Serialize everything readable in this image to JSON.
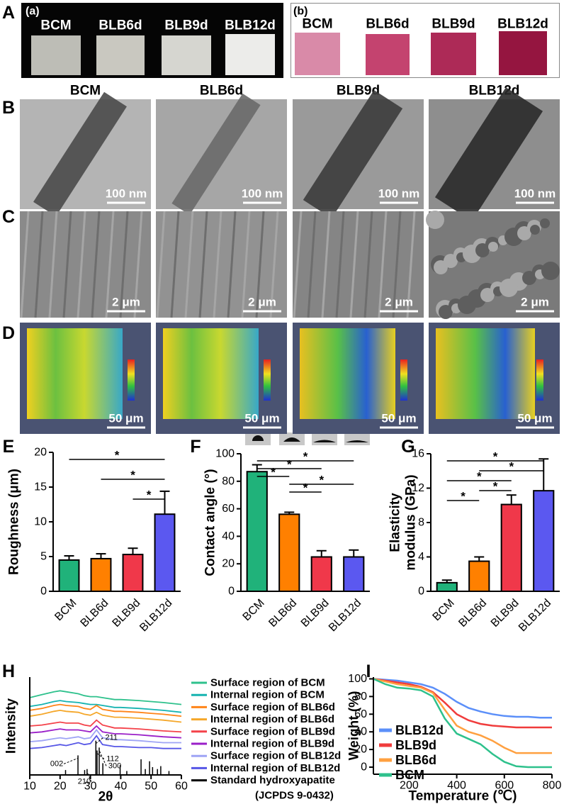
{
  "panel_labels": [
    "A",
    "B",
    "C",
    "D",
    "E",
    "F",
    "G",
    "H",
    "I"
  ],
  "photo_labels": [
    "(a)",
    "(b)"
  ],
  "columns": [
    "BCM",
    "BLB6d",
    "BLB9d",
    "BLB12d"
  ],
  "scale_bars": {
    "B": "100 nm",
    "C": "2 μm",
    "D": "50 μm"
  },
  "chart_data": [
    {
      "type": "bar",
      "ylabel": "Roughness (μm)",
      "categories": [
        "BCM",
        "BLB6d",
        "BLB9d",
        "BLB12d"
      ],
      "values": [
        4.5,
        4.7,
        5.3,
        11.1
      ],
      "errors": [
        0.6,
        0.7,
        0.9,
        3.3
      ],
      "colors": [
        "#20b27a",
        "#ff8000",
        "#f0384a",
        "#5b58f0"
      ],
      "ylim": [
        0,
        20
      ],
      "yticks": [
        0,
        5,
        10,
        15,
        20
      ],
      "significance": [
        {
          "from": 0,
          "to": 3,
          "label": "*"
        },
        {
          "from": 1,
          "to": 3,
          "label": "*"
        },
        {
          "from": 2,
          "to": 3,
          "label": "*"
        }
      ]
    },
    {
      "type": "bar",
      "ylabel": "Contact angle (°)",
      "categories": [
        "BCM",
        "BLB6d",
        "BLB9d",
        "BLB12d"
      ],
      "values": [
        87,
        56,
        25,
        25
      ],
      "errors": [
        5,
        1.5,
        4.5,
        5
      ],
      "colors": [
        "#20b27a",
        "#ff8000",
        "#f0384a",
        "#5b58f0"
      ],
      "ylim": [
        0,
        100
      ],
      "yticks": [
        0,
        20,
        40,
        60,
        80,
        100
      ],
      "significance": [
        {
          "from": 0,
          "to": 3,
          "label": "*"
        },
        {
          "from": 0,
          "to": 2,
          "label": "*"
        },
        {
          "from": 0,
          "to": 1,
          "label": "*"
        },
        {
          "from": 1,
          "to": 3,
          "label": "*"
        },
        {
          "from": 1,
          "to": 2,
          "label": "*"
        }
      ]
    },
    {
      "type": "bar",
      "ylabel": [
        "Elasticity",
        "modulus (GPa)"
      ],
      "categories": [
        "BCM",
        "BLB6d",
        "BLB9d",
        "BLB12d"
      ],
      "values": [
        1.0,
        3.5,
        10.1,
        11.7
      ],
      "errors": [
        0.3,
        0.5,
        1.1,
        3.7
      ],
      "colors": [
        "#20b27a",
        "#ff8000",
        "#f0384a",
        "#5b58f0"
      ],
      "ylim": [
        0,
        16
      ],
      "yticks": [
        0,
        4,
        8,
        12,
        16
      ],
      "significance": [
        {
          "from": 0,
          "to": 3,
          "label": "*"
        },
        {
          "from": 1,
          "to": 3,
          "label": "*"
        },
        {
          "from": 0,
          "to": 2,
          "label": "*"
        },
        {
          "from": 1,
          "to": 2,
          "label": "*"
        },
        {
          "from": 0,
          "to": 1,
          "label": "*"
        }
      ]
    },
    {
      "type": "xrd",
      "xlabel": "2θ",
      "ylabel": "Intensity",
      "xlim": [
        10,
        60
      ],
      "xticks": [
        10,
        20,
        30,
        40,
        50,
        60
      ],
      "ylim": [
        0,
        100
      ],
      "x": [
        10,
        14,
        18,
        20,
        22,
        26,
        28,
        30,
        32,
        34,
        38,
        40,
        46,
        50,
        54,
        60
      ],
      "series": [
        {
          "name": "Surface region of BCM",
          "color": "#2ec18c",
          "values": [
            79,
            82,
            85,
            86,
            85,
            83,
            81,
            80,
            80,
            79,
            77,
            77,
            76,
            75,
            74,
            72
          ]
        },
        {
          "name": "Internal region of BCM",
          "color": "#16b3b0",
          "values": [
            70,
            72,
            75,
            76,
            75,
            74,
            73,
            72,
            72,
            71,
            69,
            69,
            68,
            67,
            66,
            64
          ]
        },
        {
          "name": "Surface region of BLB6d",
          "color": "#ff8418",
          "values": [
            66,
            68,
            71,
            72,
            71,
            70,
            68,
            67,
            71,
            67,
            65,
            65,
            64,
            63,
            62,
            60
          ]
        },
        {
          "name": "Internal region of BLB6d",
          "color": "#f5a72a",
          "values": [
            60,
            62,
            65,
            66,
            65,
            64,
            62,
            61,
            64,
            61,
            59,
            59,
            58,
            57,
            56,
            54
          ]
        },
        {
          "name": "Surface region of BLB9d",
          "color": "#f4424a",
          "values": [
            50,
            51,
            53,
            54,
            53,
            53,
            51,
            50,
            56,
            51,
            48,
            48,
            47,
            46,
            45,
            44
          ]
        },
        {
          "name": "Internal region of BLB9d",
          "color": "#9a1fc8",
          "values": [
            43,
            44,
            46,
            47,
            46,
            46,
            45,
            44,
            50,
            44,
            42,
            42,
            41,
            40,
            39,
            38
          ]
        },
        {
          "name": "Surface region of BLB12d",
          "color": "#9ea4f5",
          "values": [
            34,
            35,
            37,
            38,
            37,
            39,
            37,
            38,
            46,
            38,
            36,
            36,
            35,
            34,
            33,
            33
          ]
        },
        {
          "name": "Internal region of BLB12d",
          "color": "#5656e6",
          "values": [
            27,
            28,
            30,
            31,
            30,
            33,
            31,
            32,
            40,
            31,
            29,
            29,
            28,
            28,
            27,
            27
          ]
        }
      ],
      "reference": {
        "name": "Standard hydroxyapatite",
        "note": "(JCPDS 9-0432)",
        "color": "#000000",
        "x": [
          21.8,
          25.9,
          28.1,
          28.9,
          31.8,
          32.2,
          32.9,
          34.1,
          39.8,
          42.0,
          46.7,
          48.1,
          49.5,
          50.5,
          52.1,
          53.2,
          55.9
        ],
        "values": [
          5,
          20,
          5,
          6,
          35,
          25,
          28,
          12,
          10,
          4,
          16,
          6,
          14,
          8,
          6,
          9,
          4
        ]
      },
      "annotations": [
        {
          "label": "002",
          "x": 25.9
        },
        {
          "label": "210",
          "x": 28.9
        },
        {
          "label": "211",
          "x": 31.8
        },
        {
          "label": "112",
          "x": 32.2
        },
        {
          "label": "300",
          "x": 32.9
        }
      ]
    },
    {
      "type": "line",
      "xlabel": "Temperature (℃)",
      "ylabel": "Weight (%)",
      "xlim": [
        50,
        800
      ],
      "xticks": [
        200,
        400,
        600,
        800
      ],
      "ylim": [
        -8,
        102
      ],
      "yticks": [
        0,
        20,
        40,
        60,
        80,
        100
      ],
      "x": [
        50,
        100,
        150,
        200,
        250,
        300,
        350,
        400,
        450,
        500,
        550,
        600,
        650,
        700,
        750,
        800
      ],
      "series": [
        {
          "name": "BLB12d",
          "color": "#5b8ff9",
          "values": [
            100,
            99,
            98,
            96,
            94,
            90,
            83,
            74,
            67,
            63,
            60,
            58,
            57,
            57,
            56,
            56
          ]
        },
        {
          "name": "BLB9d",
          "color": "#f03c3c",
          "values": [
            100,
            98,
            96,
            94,
            91,
            85,
            73,
            60,
            53,
            49,
            47,
            46,
            45,
            45,
            45,
            45
          ]
        },
        {
          "name": "BLB6d",
          "color": "#ffa040",
          "values": [
            100,
            97,
            94,
            92,
            90,
            84,
            65,
            47,
            40,
            36,
            30,
            22,
            16,
            16,
            16,
            16
          ]
        },
        {
          "name": "BCM",
          "color": "#2ec18c",
          "values": [
            100,
            94,
            90,
            89,
            87,
            80,
            55,
            38,
            32,
            26,
            15,
            6,
            1,
            0,
            0,
            0
          ]
        }
      ]
    }
  ]
}
